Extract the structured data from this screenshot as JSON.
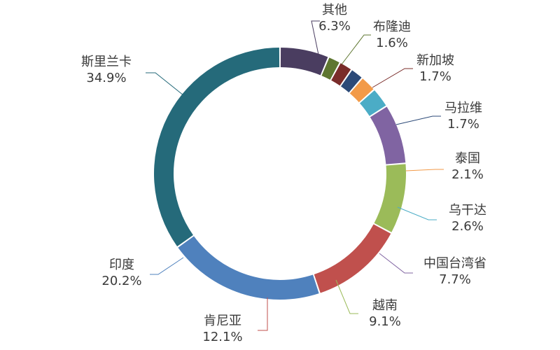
{
  "chart_data": {
    "type": "pie",
    "style": "donut",
    "start_angle_deg": 0,
    "direction": "clockwise",
    "legend": "none",
    "slices": [
      {
        "name": "其他",
        "value": 6.3,
        "label": "6.3%",
        "color": "#4a3d60"
      },
      {
        "name": "布隆迪",
        "value": 1.6,
        "label": "1.6%",
        "color": "#5e7630"
      },
      {
        "name": "新加坡",
        "value": 1.7,
        "label": "1.7%",
        "color": "#7a2c2a"
      },
      {
        "name": "马拉维",
        "value": 1.7,
        "label": "1.7%",
        "color": "#2c4a78"
      },
      {
        "name": "泰国",
        "value": 2.1,
        "label": "2.1%",
        "color": "#f29a48"
      },
      {
        "name": "乌干达",
        "value": 2.6,
        "label": "2.6%",
        "color": "#4bacc6"
      },
      {
        "name": "中国台湾省",
        "value": 7.7,
        "label": "7.7%",
        "color": "#8064a2"
      },
      {
        "name": "越南",
        "value": 9.1,
        "label": "9.1%",
        "color": "#9bbb59"
      },
      {
        "name": "肯尼亚",
        "value": 12.1,
        "label": "12.1%",
        "color": "#c0504d"
      },
      {
        "name": "印度",
        "value": 20.2,
        "label": "20.2%",
        "color": "#4f81bd"
      },
      {
        "name": "斯里兰卡",
        "value": 34.9,
        "label": "34.9%",
        "color": "#256a7a"
      }
    ]
  }
}
